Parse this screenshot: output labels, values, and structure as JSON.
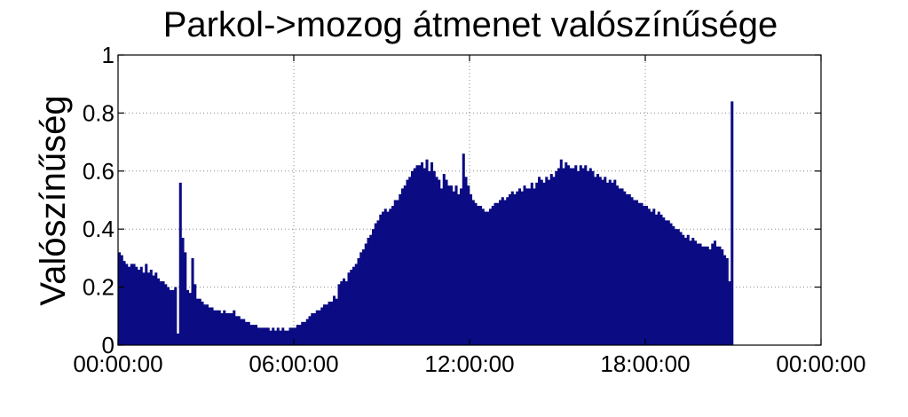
{
  "chart_data": {
    "type": "bar",
    "title": "Parkol->mozog átmenet valószínűsége",
    "xlabel": "",
    "ylabel": "Valószínűség",
    "x_ticks": [
      "00:00:00",
      "06:00:00",
      "12:00:00",
      "18:00:00",
      "00:00:00"
    ],
    "y_ticks": [
      "0",
      "0.2",
      "0.4",
      "0.6",
      "0.8",
      "1"
    ],
    "xlim_hours": [
      0,
      24
    ],
    "ylim": [
      0,
      1
    ],
    "bin_width_minutes": 5,
    "grid": true,
    "grid_style": "dotted",
    "bar_color": "#0b0b84",
    "values": [
      0.32,
      0.31,
      0.29,
      0.28,
      0.27,
      0.28,
      0.28,
      0.27,
      0.26,
      0.27,
      0.25,
      0.28,
      0.25,
      0.26,
      0.24,
      0.25,
      0.23,
      0.22,
      0.22,
      0.21,
      0.2,
      0.19,
      0.19,
      0.2,
      0.04,
      0.56,
      0.37,
      0.32,
      0.19,
      0.18,
      0.3,
      0.21,
      0.16,
      0.16,
      0.15,
      0.14,
      0.14,
      0.13,
      0.13,
      0.12,
      0.12,
      0.12,
      0.11,
      0.12,
      0.11,
      0.11,
      0.11,
      0.12,
      0.1,
      0.1,
      0.09,
      0.09,
      0.08,
      0.08,
      0.07,
      0.07,
      0.07,
      0.06,
      0.06,
      0.06,
      0.06,
      0.06,
      0.05,
      0.06,
      0.05,
      0.06,
      0.05,
      0.06,
      0.05,
      0.05,
      0.06,
      0.06,
      0.06,
      0.07,
      0.07,
      0.08,
      0.08,
      0.09,
      0.1,
      0.11,
      0.11,
      0.12,
      0.12,
      0.13,
      0.14,
      0.14,
      0.15,
      0.15,
      0.17,
      0.16,
      0.21,
      0.22,
      0.23,
      0.22,
      0.25,
      0.26,
      0.27,
      0.28,
      0.3,
      0.32,
      0.33,
      0.35,
      0.37,
      0.38,
      0.4,
      0.42,
      0.43,
      0.45,
      0.46,
      0.47,
      0.46,
      0.47,
      0.48,
      0.5,
      0.5,
      0.52,
      0.54,
      0.55,
      0.57,
      0.58,
      0.6,
      0.61,
      0.62,
      0.62,
      0.63,
      0.61,
      0.64,
      0.6,
      0.63,
      0.6,
      0.58,
      0.57,
      0.54,
      0.59,
      0.57,
      0.55,
      0.55,
      0.53,
      0.55,
      0.52,
      0.54,
      0.66,
      0.58,
      0.55,
      0.52,
      0.5,
      0.49,
      0.48,
      0.48,
      0.47,
      0.46,
      0.46,
      0.47,
      0.48,
      0.49,
      0.49,
      0.5,
      0.51,
      0.5,
      0.51,
      0.52,
      0.53,
      0.52,
      0.53,
      0.54,
      0.53,
      0.55,
      0.54,
      0.54,
      0.56,
      0.54,
      0.56,
      0.58,
      0.57,
      0.56,
      0.58,
      0.57,
      0.59,
      0.58,
      0.6,
      0.61,
      0.64,
      0.61,
      0.63,
      0.62,
      0.61,
      0.61,
      0.62,
      0.6,
      0.62,
      0.61,
      0.62,
      0.6,
      0.61,
      0.6,
      0.58,
      0.59,
      0.58,
      0.57,
      0.58,
      0.56,
      0.57,
      0.56,
      0.57,
      0.55,
      0.54,
      0.54,
      0.53,
      0.52,
      0.52,
      0.51,
      0.5,
      0.5,
      0.49,
      0.49,
      0.48,
      0.48,
      0.47,
      0.46,
      0.47,
      0.45,
      0.46,
      0.45,
      0.44,
      0.43,
      0.43,
      0.42,
      0.41,
      0.4,
      0.4,
      0.39,
      0.38,
      0.37,
      0.38,
      0.36,
      0.37,
      0.36,
      0.35,
      0.35,
      0.34,
      0.34,
      0.34,
      0.33,
      0.35,
      0.36,
      0.34,
      0.34,
      0.33,
      0.31,
      0.3,
      0.22,
      0.84
    ]
  }
}
